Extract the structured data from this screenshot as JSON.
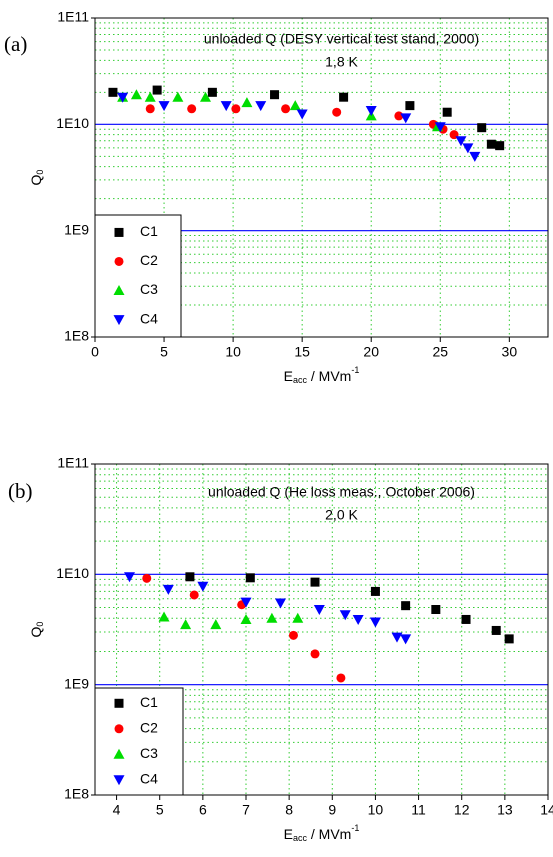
{
  "chart_data": [
    {
      "type": "scatter",
      "panel_label": "(a)",
      "annotations": [
        "unloaded Q (DESY vertical test stand, 2000)",
        "1,8 K"
      ],
      "xlabel": {
        "main": "E",
        "sub": "acc",
        "rest": " / MVm",
        "sup": "-1"
      },
      "ylabel": {
        "main": "Q",
        "sub": "0"
      },
      "log_y": true,
      "grid": true,
      "legend": "lower left",
      "xlim": [
        0,
        32.8
      ],
      "xticks": [
        0,
        5,
        10,
        15,
        20,
        25,
        30
      ],
      "ylim": [
        100000000.0,
        100000000000.0
      ],
      "yticks": [
        {
          "value": 100000000.0,
          "label": "1E8"
        },
        {
          "value": 1000000000.0,
          "label": "1E9"
        },
        {
          "value": 10000000000.0,
          "label": "1E10"
        },
        {
          "value": 100000000000.0,
          "label": "1E11"
        }
      ],
      "series": [
        {
          "name": "C1",
          "color": "#000000",
          "marker": "square",
          "x": [
            1.3,
            4.5,
            8.5,
            13,
            18,
            22.8,
            25.5,
            28,
            28.7,
            29.3
          ],
          "values": [
            20000000000.0,
            21000000000.0,
            20000000000.0,
            19000000000.0,
            18000000000.0,
            15000000000.0,
            13000000000.0,
            9300000000.0,
            6500000000.0,
            6300000000.0
          ]
        },
        {
          "name": "C2",
          "color": "#ff0000",
          "marker": "circle",
          "x": [
            4,
            7,
            10.2,
            13.8,
            17.5,
            22,
            24.5,
            25.2,
            26
          ],
          "values": [
            14000000000.0,
            14000000000.0,
            14000000000.0,
            14000000000.0,
            13000000000.0,
            12000000000.0,
            10000000000.0,
            9000000000.0,
            8000000000.0
          ]
        },
        {
          "name": "C3",
          "color": "#00dd00",
          "marker": "triangle-up",
          "x": [
            2,
            3,
            4,
            6,
            8,
            11,
            14.5,
            20,
            24.8
          ],
          "values": [
            18000000000.0,
            19000000000.0,
            18000000000.0,
            18000000000.0,
            18000000000.0,
            16000000000.0,
            15000000000.0,
            12000000000.0,
            9500000000.0
          ]
        },
        {
          "name": "C4",
          "color": "#0000ff",
          "marker": "triangle-down",
          "x": [
            2,
            5,
            9.5,
            12,
            15,
            20,
            22.5,
            25,
            26.5,
            27,
            27.5
          ],
          "values": [
            18000000000.0,
            15000000000.0,
            15000000000.0,
            15000000000.0,
            12500000000.0,
            13500000000.0,
            11500000000.0,
            9500000000.0,
            7000000000.0,
            6000000000.0,
            5000000000.0
          ]
        }
      ]
    },
    {
      "type": "scatter",
      "panel_label": "(b)",
      "annotations": [
        "unloaded Q (He loss meas., October 2006)",
        "2,0 K"
      ],
      "xlabel": {
        "main": "E",
        "sub": "acc",
        "rest": " / MVm",
        "sup": "-1"
      },
      "ylabel": {
        "main": "Q",
        "sub": "0"
      },
      "log_y": true,
      "grid": true,
      "legend": "lower left",
      "xlim": [
        3.5,
        14
      ],
      "xticks": [
        4,
        5,
        6,
        7,
        8,
        9,
        10,
        11,
        12,
        13,
        14
      ],
      "ylim": [
        100000000.0,
        100000000000.0
      ],
      "yticks": [
        {
          "value": 100000000.0,
          "label": "1E8"
        },
        {
          "value": 1000000000.0,
          "label": "1E9"
        },
        {
          "value": 10000000000.0,
          "label": "1E10"
        },
        {
          "value": 100000000000.0,
          "label": "1E11"
        }
      ],
      "series": [
        {
          "name": "C1",
          "color": "#000000",
          "marker": "square",
          "x": [
            5.7,
            7.1,
            8.6,
            10,
            10.7,
            11.4,
            12.1,
            12.8,
            13.1
          ],
          "values": [
            9500000000.0,
            9300000000.0,
            8500000000.0,
            7000000000.0,
            5200000000.0,
            4800000000.0,
            3900000000.0,
            3100000000.0,
            2600000000.0
          ]
        },
        {
          "name": "C2",
          "color": "#ff0000",
          "marker": "circle",
          "x": [
            4.7,
            5.8,
            6.9,
            8.1,
            8.6,
            9.2
          ],
          "values": [
            9200000000.0,
            6500000000.0,
            5300000000.0,
            2800000000.0,
            1900000000.0,
            1150000000.0
          ]
        },
        {
          "name": "C3",
          "color": "#00dd00",
          "marker": "triangle-up",
          "x": [
            5.1,
            5.6,
            6.3,
            7,
            7.6,
            8.2
          ],
          "values": [
            4100000000.0,
            3500000000.0,
            3500000000.0,
            3900000000.0,
            4000000000.0,
            4000000000.0
          ]
        },
        {
          "name": "C4",
          "color": "#0000ff",
          "marker": "triangle-down",
          "x": [
            4.3,
            5.2,
            6,
            7,
            7.8,
            8.7,
            9.3,
            9.6,
            10,
            10.5,
            10.7
          ],
          "values": [
            9500000000.0,
            7300000000.0,
            7800000000.0,
            5600000000.0,
            5500000000.0,
            4800000000.0,
            4300000000.0,
            3900000000.0,
            3700000000.0,
            2700000000.0,
            2600000000.0
          ]
        }
      ]
    }
  ]
}
